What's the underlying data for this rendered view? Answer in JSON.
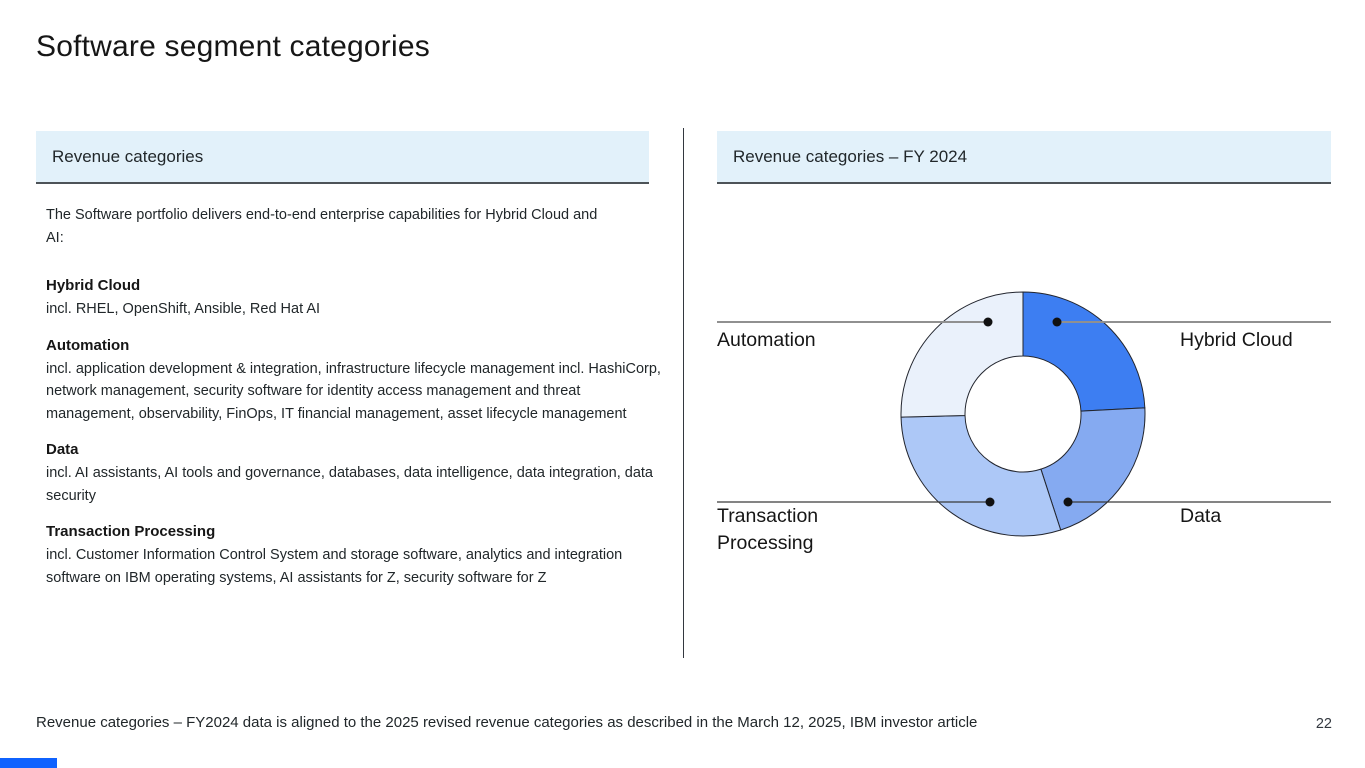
{
  "slide": {
    "title": "Software segment categories",
    "footer": "Revenue categories – FY2024 data is aligned to the 2025 revised revenue categories as described in the March 12, 2025, IBM investor article",
    "page_number": "22"
  },
  "left_panel": {
    "header": "Revenue categories",
    "intro": "The Software portfolio delivers end-to-end enterprise capabilities for Hybrid Cloud and AI:",
    "categories": [
      {
        "name": "Hybrid Cloud",
        "description": "incl. RHEL, OpenShift, Ansible, Red Hat AI"
      },
      {
        "name": "Automation",
        "description": "incl. application development & integration, infrastructure lifecycle management incl. HashiCorp, network management, security software for identity access management and threat management, observability, FinOps, IT financial management, asset lifecycle management"
      },
      {
        "name": "Data",
        "description": "incl. AI assistants, AI tools and governance, databases, data intelligence, data integration, data security"
      },
      {
        "name": "Transaction Processing",
        "description": "incl. Customer Information Control System and storage software, analytics and integration software on IBM operating systems, AI assistants for Z, security software for Z"
      }
    ]
  },
  "right_panel": {
    "header": "Revenue categories – FY 2024",
    "labels": {
      "top_left": "Automation",
      "top_right": "Hybrid Cloud",
      "bottom_left": "Transaction Processing",
      "bottom_right": "Data"
    }
  },
  "chart_data": {
    "type": "pie",
    "subtype": "donut",
    "title": "Revenue categories – FY 2024",
    "note": "Unlabeled donut; segment shares estimated from arc angles, clockwise from 12 o'clock",
    "segments": [
      {
        "label": "Hybrid Cloud",
        "value": 24.2,
        "color": "#3d7ef2"
      },
      {
        "label": "Data",
        "value": 20.8,
        "color": "#85aaf1"
      },
      {
        "label": "Transaction Processing",
        "value": 29.6,
        "color": "#adc8f7"
      },
      {
        "label": "Automation",
        "value": 25.4,
        "color": "#eaf1fb"
      }
    ],
    "start_angle_deg": 0,
    "direction": "clockwise",
    "inner_radius_ratio": 0.475,
    "outline_color": "#22252e",
    "legend_position": "callouts"
  },
  "colors": {
    "header_background": "#e2f1fa",
    "header_border": "#4d5358",
    "accent_bar": "#0f62fe",
    "callout_line_top": "#909090",
    "callout_line_bottom": "#3a3a3a",
    "callout_dot": "#111111"
  }
}
